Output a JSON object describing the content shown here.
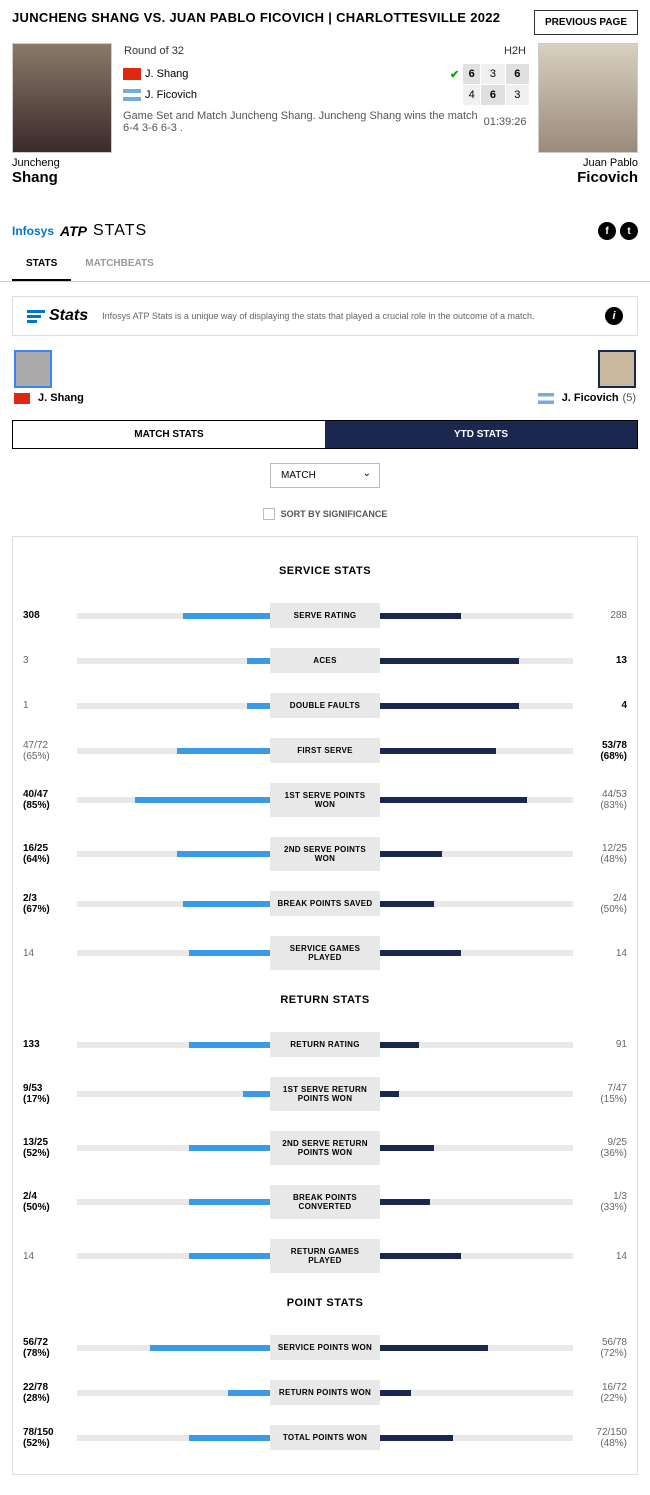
{
  "header": {
    "title": "JUNCHENG SHANG VS. JUAN PABLO FICOVICH | CHARLOTTESVILLE 2022",
    "prev_btn": "PREVIOUS PAGE"
  },
  "match": {
    "round": "Round of 32",
    "h2h": "H2H",
    "p1_name": "J. Shang",
    "p2_name": "J. Ficovich",
    "p1_first": "Juncheng",
    "p1_last": "Shang",
    "p2_first": "Juan Pablo",
    "p2_last": "Ficovich",
    "sets": {
      "p1": [
        "6",
        "3",
        "6"
      ],
      "p2": [
        "4",
        "6",
        "3"
      ]
    },
    "msg": "Game Set and Match Juncheng Shang. Juncheng Shang wins the match 6-4 3-6 6-3 .",
    "duration": "01:39:26"
  },
  "logo": {
    "infosys": "Infosys",
    "atp": "ATP",
    "stats": "STATS"
  },
  "tabs": {
    "t1": "STATS",
    "t2": "MATCHBEATS"
  },
  "banner": {
    "title": "Stats",
    "text": "Infosys ATP Stats is a unique way of displaying the stats that played a crucial role in the outcome of a match."
  },
  "mini": {
    "p1": "J. Shang",
    "p2": "J. Ficovich",
    "p2_seed": "(5)"
  },
  "stat_tabs": {
    "t1": "MATCH STATS",
    "t2": "YTD STATS"
  },
  "controls": {
    "dropdown": "MATCH",
    "sort": "SORT BY SIGNIFICANCE"
  },
  "colors": {
    "p1_bar": "#3b9ae8",
    "p2_bar": "#1a2850",
    "track": "#e8e8e8",
    "label_bg": "#e8e8e8"
  },
  "sections": [
    {
      "title": "SERVICE STATS",
      "rows": [
        {
          "label": "SERVE RATING",
          "l": "308",
          "r": "288",
          "lp": 45,
          "rp": 42,
          "lb": true,
          "rb": false
        },
        {
          "label": "ACES",
          "l": "3",
          "r": "13",
          "lp": 12,
          "rp": 72,
          "lb": false,
          "rb": true
        },
        {
          "label": "DOUBLE FAULTS",
          "l": "1",
          "r": "4",
          "lp": 12,
          "rp": 72,
          "lb": false,
          "rb": true
        },
        {
          "label": "FIRST SERVE",
          "l": "47/72\n(65%)",
          "r": "53/78\n(68%)",
          "lp": 48,
          "rp": 60,
          "lb": false,
          "rb": true
        },
        {
          "label": "1ST SERVE POINTS WON",
          "l": "40/47\n(85%)",
          "r": "44/53\n(83%)",
          "lp": 70,
          "rp": 76,
          "lb": true,
          "rb": false
        },
        {
          "label": "2ND SERVE POINTS WON",
          "l": "16/25\n(64%)",
          "r": "12/25\n(48%)",
          "lp": 48,
          "rp": 32,
          "lb": true,
          "rb": false
        },
        {
          "label": "BREAK POINTS SAVED",
          "l": "2/3\n(67%)",
          "r": "2/4\n(50%)",
          "lp": 45,
          "rp": 28,
          "lb": true,
          "rb": false
        },
        {
          "label": "SERVICE GAMES PLAYED",
          "l": "14",
          "r": "14",
          "lp": 42,
          "rp": 42,
          "lb": false,
          "rb": false
        }
      ]
    },
    {
      "title": "RETURN STATS",
      "rows": [
        {
          "label": "RETURN RATING",
          "l": "133",
          "r": "91",
          "lp": 42,
          "rp": 20,
          "lb": true,
          "rb": false
        },
        {
          "label": "1ST SERVE RETURN POINTS WON",
          "l": "9/53\n(17%)",
          "r": "7/47\n(15%)",
          "lp": 14,
          "rp": 10,
          "lb": true,
          "rb": false
        },
        {
          "label": "2ND SERVE RETURN POINTS WON",
          "l": "13/25\n(52%)",
          "r": "9/25\n(36%)",
          "lp": 42,
          "rp": 28,
          "lb": true,
          "rb": false
        },
        {
          "label": "BREAK POINTS CONVERTED",
          "l": "2/4\n(50%)",
          "r": "1/3\n(33%)",
          "lp": 42,
          "rp": 26,
          "lb": true,
          "rb": false
        },
        {
          "label": "RETURN GAMES PLAYED",
          "l": "14",
          "r": "14",
          "lp": 42,
          "rp": 42,
          "lb": false,
          "rb": false
        }
      ]
    },
    {
      "title": "POINT STATS",
      "rows": [
        {
          "label": "SERVICE POINTS WON",
          "l": "56/72\n(78%)",
          "r": "56/78\n(72%)",
          "lp": 62,
          "rp": 56,
          "lb": true,
          "rb": false
        },
        {
          "label": "RETURN POINTS WON",
          "l": "22/78\n(28%)",
          "r": "16/72\n(22%)",
          "lp": 22,
          "rp": 16,
          "lb": true,
          "rb": false
        },
        {
          "label": "TOTAL POINTS WON",
          "l": "78/150\n(52%)",
          "r": "72/150\n(48%)",
          "lp": 42,
          "rp": 38,
          "lb": true,
          "rb": false
        }
      ]
    }
  ]
}
